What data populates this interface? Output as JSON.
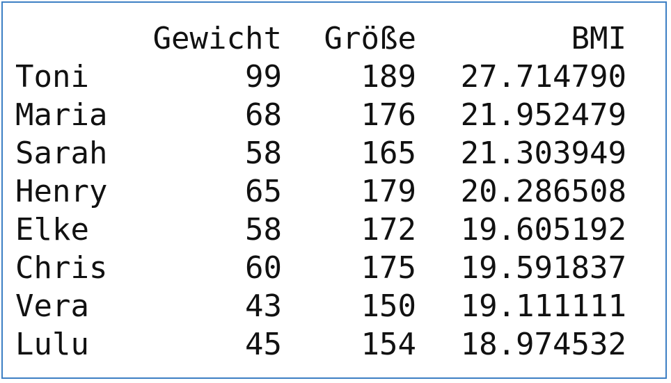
{
  "table": {
    "headers": [
      "",
      "Gewicht",
      "Größe",
      "BMI"
    ],
    "rows": [
      {
        "name": "Toni",
        "gewicht": "99",
        "groesse": "189",
        "bmi": "27.714790"
      },
      {
        "name": "Maria",
        "gewicht": "68",
        "groesse": "176",
        "bmi": "21.952479"
      },
      {
        "name": "Sarah",
        "gewicht": "58",
        "groesse": "165",
        "bmi": "21.303949"
      },
      {
        "name": "Henry",
        "gewicht": "65",
        "groesse": "179",
        "bmi": "20.286508"
      },
      {
        "name": "Elke",
        "gewicht": "58",
        "groesse": "172",
        "bmi": "19.605192"
      },
      {
        "name": "Chris",
        "gewicht": "60",
        "groesse": "175",
        "bmi": "19.591837"
      },
      {
        "name": "Vera",
        "gewicht": "43",
        "groesse": "150",
        "bmi": "19.111111"
      },
      {
        "name": "Lulu",
        "gewicht": "45",
        "groesse": "154",
        "bmi": "18.974532"
      }
    ]
  },
  "colors": {
    "border": "#3c7fc4",
    "text": "#111111",
    "background": "#ffffff"
  }
}
